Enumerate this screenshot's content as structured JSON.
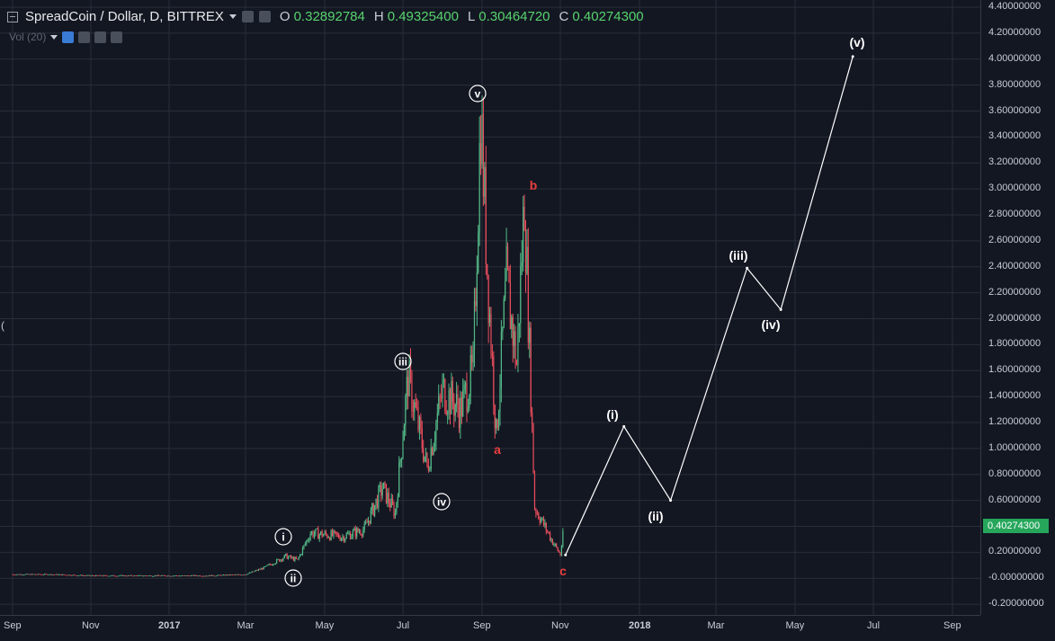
{
  "legend": {
    "symbol_title": "SpreadCoin / Dollar, D, BITTREX",
    "open_key": "O",
    "open": "0.32892784",
    "high_key": "H",
    "high": "0.49325400",
    "low_key": "L",
    "low": "0.30464720",
    "close_key": "C",
    "close": "0.40274300",
    "volume_label": "Vol (20)"
  },
  "price_axis": {
    "labels": [
      "4.40000000",
      "4.20000000",
      "4.00000000",
      "3.80000000",
      "3.60000000",
      "3.40000000",
      "3.20000000",
      "3.00000000",
      "2.80000000",
      "2.60000000",
      "2.40000000",
      "2.20000000",
      "2.00000000",
      "1.80000000",
      "1.60000000",
      "1.40000000",
      "1.20000000",
      "1.00000000",
      "0.80000000",
      "0.60000000",
      "0.40000000",
      "0.20000000",
      "-0.00000000",
      "-0.20000000"
    ],
    "current_price": "0.40274300"
  },
  "time_axis": {
    "labels": [
      "Sep",
      "Nov",
      "2017",
      "Mar",
      "May",
      "Jul",
      "Sep",
      "Nov",
      "2018",
      "Mar",
      "May",
      "Jul",
      "Sep"
    ]
  },
  "wave_labels": {
    "i": "i",
    "ii": "ii",
    "iii": "iii",
    "iv": "iv",
    "v": "v",
    "a": "a",
    "b": "b",
    "c": "c",
    "pi": "(i)",
    "pii": "(ii)",
    "piii": "(iii)",
    "piv": "(iv)",
    "pv": "(v)"
  },
  "colors": {
    "background": "#131722",
    "grid": "#2a2e39",
    "up": "#53b987",
    "down": "#eb4d5c",
    "projection": "#ffffff",
    "wave_red": "#e8403f",
    "current_price": "#26a65b"
  },
  "chart_data": {
    "type": "candlestick",
    "title": "SpreadCoin / Dollar, D, BITTREX",
    "x_axis_range": [
      "2016-09",
      "2018-09"
    ],
    "ylim": [
      -0.2,
      4.4
    ],
    "grid": true,
    "price_path": [
      {
        "date": "2016-09-01",
        "value": 0.03
      },
      {
        "date": "2016-10-01",
        "value": 0.03
      },
      {
        "date": "2016-11-01",
        "value": 0.02
      },
      {
        "date": "2016-12-01",
        "value": 0.02
      },
      {
        "date": "2017-01-01",
        "value": 0.02
      },
      {
        "date": "2017-02-01",
        "value": 0.02
      },
      {
        "date": "2017-03-01",
        "value": 0.03
      },
      {
        "date": "2017-03-15",
        "value": 0.08
      },
      {
        "date": "2017-04-01",
        "value": 0.17
      },
      {
        "date": "2017-04-10",
        "value": 0.14
      },
      {
        "date": "2017-04-20",
        "value": 0.35
      },
      {
        "date": "2017-05-15",
        "value": 0.32
      },
      {
        "date": "2017-06-01",
        "value": 0.38
      },
      {
        "date": "2017-06-15",
        "value": 0.7
      },
      {
        "date": "2017-06-25",
        "value": 0.5
      },
      {
        "date": "2017-07-05",
        "value": 1.55
      },
      {
        "date": "2017-07-20",
        "value": 0.85
      },
      {
        "date": "2017-08-01",
        "value": 1.45
      },
      {
        "date": "2017-08-15",
        "value": 1.3
      },
      {
        "date": "2017-08-25",
        "value": 1.6
      },
      {
        "date": "2017-08-31",
        "value": 3.6
      },
      {
        "date": "2017-09-05",
        "value": 2.4
      },
      {
        "date": "2017-09-12",
        "value": 1.1
      },
      {
        "date": "2017-09-20",
        "value": 2.3
      },
      {
        "date": "2017-09-28",
        "value": 1.65
      },
      {
        "date": "2017-10-04",
        "value": 2.95
      },
      {
        "date": "2017-10-12",
        "value": 0.55
      },
      {
        "date": "2017-10-25",
        "value": 0.3
      },
      {
        "date": "2017-11-01",
        "value": 0.18
      },
      {
        "date": "2017-11-04",
        "value": 0.4
      }
    ],
    "projection": [
      {
        "label": "c",
        "date": "2017-11-05",
        "value": 0.18
      },
      {
        "label": "(i)",
        "date": "2017-12-20",
        "value": 1.17
      },
      {
        "label": "(ii)",
        "date": "2018-01-25",
        "value": 0.6
      },
      {
        "label": "(iii)",
        "date": "2018-03-25",
        "value": 2.39
      },
      {
        "label": "(iv)",
        "date": "2018-04-20",
        "value": 2.07
      },
      {
        "label": "(v)",
        "date": "2018-06-15",
        "value": 4.02
      }
    ],
    "last": {
      "open": 0.32892784,
      "high": 0.493254,
      "low": 0.3046472,
      "close": 0.402743
    }
  }
}
